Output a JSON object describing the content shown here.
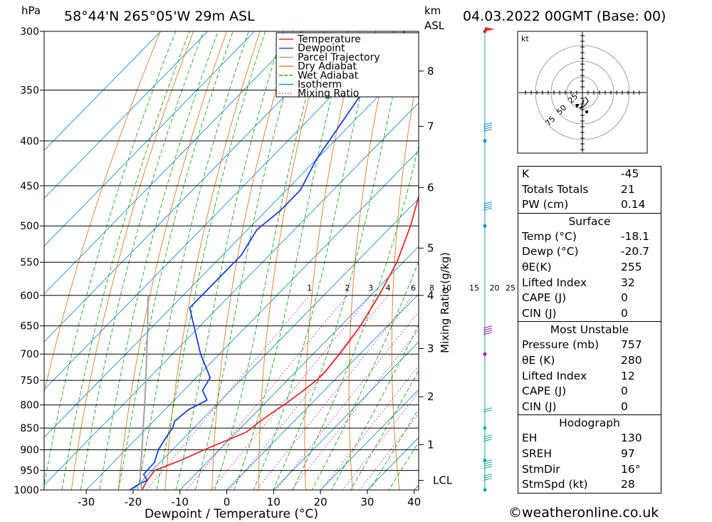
{
  "header": {
    "location": "58°44'N  265°05'W  29m  ASL",
    "run": "04.03.2022  00GMT  (Base: 00)",
    "pressure_unit": "hPa",
    "height_unit": [
      "km",
      "ASL"
    ]
  },
  "chart_data": {
    "type": "line",
    "title": "58°44'N  265°05'W  29m  ASL",
    "xlabel": "Dewpoint / Temperature (°C)",
    "ylabel": "hPa",
    "y_scale": "log",
    "skew": "skew-T log-p",
    "xlim": [
      -40,
      40
    ],
    "ylim": [
      1000,
      300
    ],
    "x_ticks": [
      -30,
      -20,
      -10,
      0,
      10,
      20,
      30,
      40
    ],
    "y_ticks": [
      300,
      350,
      400,
      450,
      500,
      550,
      600,
      650,
      700,
      750,
      800,
      850,
      900,
      950,
      1000
    ],
    "km_ticks": [
      {
        "label": "8",
        "p": 333
      },
      {
        "label": "7",
        "p": 385
      },
      {
        "label": "6",
        "p": 452
      },
      {
        "label": "5",
        "p": 530
      },
      {
        "label": "4",
        "p": 600
      },
      {
        "label": "3",
        "p": 690
      },
      {
        "label": "2",
        "p": 783
      },
      {
        "label": "1",
        "p": 888
      },
      {
        "label": "LCL",
        "p": 975
      }
    ],
    "mixing_ratio_label": "Mixing Ratio (g/kg)",
    "mixing_ratio_values": [
      "1",
      "2",
      "3",
      "4",
      "6",
      "8",
      "10",
      "15",
      "20",
      "25"
    ],
    "grid": true,
    "legend_position": "top-right",
    "series": [
      {
        "name": "Temperature",
        "color": "#e8282a",
        "p": [
          1000,
          975,
          950,
          925,
          900,
          875,
          860,
          850,
          840,
          820,
          800,
          775,
          750,
          730,
          700,
          650,
          600,
          550,
          500,
          450,
          400,
          350,
          300
        ],
        "t": [
          -18.1,
          -19.0,
          -19.5,
          -16.0,
          -13.2,
          -10.0,
          -8.0,
          -7.6,
          -7.4,
          -6.6,
          -5.6,
          -4.6,
          -3.8,
          -3.8,
          -4.4,
          -5.8,
          -8.2,
          -11.3,
          -16.0,
          -22.0,
          -28.5,
          -35.5,
          -42.5
        ]
      },
      {
        "name": "Dewpoint",
        "color": "#1a3ee0",
        "p": [
          1000,
          985,
          975,
          960,
          930,
          900,
          870,
          850,
          835,
          810,
          790,
          770,
          745,
          735,
          700,
          620,
          540,
          505,
          480,
          455,
          420,
          300
        ],
        "t": [
          -20.7,
          -20.0,
          -19.0,
          -21.0,
          -21.2,
          -23.0,
          -24.0,
          -24.5,
          -25.5,
          -25.0,
          -23.0,
          -26.0,
          -27.0,
          -28.5,
          -34.0,
          -46.0,
          -46.0,
          -48.0,
          -47.0,
          -47.0,
          -50.0,
          -58.0
        ]
      },
      {
        "name": "Parcel Trajectory",
        "color": "#a0a0a0",
        "p": [
          1000,
          975,
          950,
          900,
          850,
          800,
          750,
          700,
          650,
          600
        ],
        "t": [
          -18.1,
          -20.5,
          -22.5,
          -26.5,
          -30.8,
          -35.3,
          -40.2,
          -45.5,
          -51.2,
          -57.5
        ]
      },
      {
        "name": "Dry Adiabat",
        "color": "#e07820"
      },
      {
        "name": "Wet Adiabat",
        "color": "#18a818"
      },
      {
        "name": "Isotherm",
        "color": "#1890e0"
      },
      {
        "name": "Mixing Ratio",
        "color": "#d020a0"
      }
    ],
    "wind_profile": [
      {
        "p": 300,
        "knots": 45,
        "flag": "pennant"
      },
      {
        "p": 390,
        "knots": 35
      },
      {
        "p": 480,
        "knots": 35
      },
      {
        "p": 665,
        "knots": 40
      },
      {
        "p": 815,
        "knots": 20
      },
      {
        "p": 880,
        "knots": 25
      },
      {
        "p": 945,
        "knots": 35
      },
      {
        "p": 975,
        "knots": 25
      }
    ],
    "hodograph": {
      "unit": "kt",
      "ring_labels": [
        "25",
        "50",
        "75"
      ],
      "points": [
        [
          2,
          10
        ],
        [
          0,
          17
        ],
        [
          -3,
          22
        ],
        [
          4,
          18
        ],
        [
          8,
          12
        ],
        [
          4,
          6
        ]
      ]
    }
  },
  "indices": {
    "basic": [
      {
        "label": "K",
        "value": "-45"
      },
      {
        "label": "Totals Totals",
        "value": "21"
      },
      {
        "label": "PW (cm)",
        "value": "0.14"
      }
    ],
    "surface": {
      "title": "Surface",
      "rows": [
        {
          "label": "Temp (°C)",
          "value": "-18.1"
        },
        {
          "label": "Dewp (°C)",
          "value": "-20.7"
        },
        {
          "label": "θE(K)",
          "value": "255"
        },
        {
          "label": "Lifted Index",
          "value": "32"
        },
        {
          "label": "CAPE (J)",
          "value": "0"
        },
        {
          "label": "CIN (J)",
          "value": "0"
        }
      ]
    },
    "most_unstable": {
      "title": "Most Unstable",
      "rows": [
        {
          "label": "Pressure (mb)",
          "value": "757"
        },
        {
          "label": "θE (K)",
          "value": "280"
        },
        {
          "label": "Lifted Index",
          "value": "12"
        },
        {
          "label": "CAPE (J)",
          "value": "0"
        },
        {
          "label": "CIN (J)",
          "value": "0"
        }
      ]
    },
    "hodograph_tbl": {
      "title": "Hodograph",
      "rows": [
        {
          "label": "EH",
          "value": "130"
        },
        {
          "label": "SREH",
          "value": "97"
        },
        {
          "label": "StmDir",
          "value": "16°"
        },
        {
          "label": "StmSpd (kt)",
          "value": "28"
        }
      ]
    }
  },
  "footer": "©weatheronline.co.uk"
}
